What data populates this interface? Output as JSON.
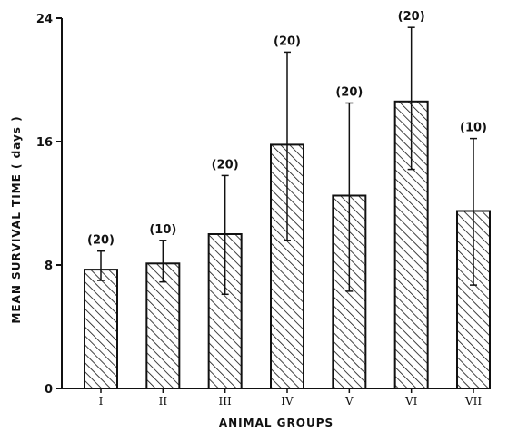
{
  "chart_data": {
    "type": "bar",
    "categories": [
      "I",
      "II",
      "III",
      "IV",
      "V",
      "VI",
      "VII"
    ],
    "values": [
      7.7,
      8.1,
      10.0,
      15.8,
      12.5,
      18.6,
      11.5
    ],
    "error_upper": [
      8.9,
      9.6,
      13.8,
      21.8,
      18.5,
      23.4,
      16.2
    ],
    "error_lower": [
      7.0,
      6.9,
      6.1,
      9.6,
      6.3,
      14.2,
      6.7
    ],
    "sample_sizes": [
      "(20)",
      "(10)",
      "(20)",
      "(20)",
      "(20)",
      "(20)",
      "(10)"
    ],
    "xlabel": "ANIMAL GROUPS",
    "ylabel": "MEAN SURVIVAL TIME ( days )",
    "ylim": [
      0,
      24
    ],
    "yticks": [
      "0",
      "8",
      "16",
      "24"
    ],
    "bar_fill": "diagonal-hatch",
    "colors": {
      "ink": "#111111",
      "background": "#ffffff"
    },
    "grid": false
  }
}
